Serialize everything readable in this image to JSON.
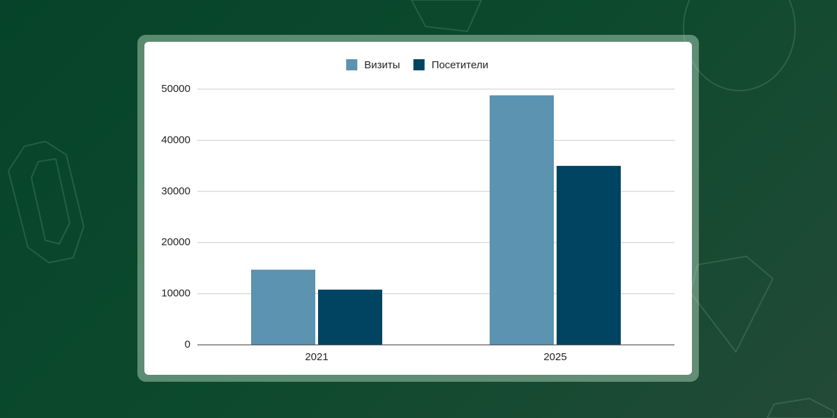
{
  "chart_data": {
    "type": "bar",
    "categories": [
      "2021",
      "2025"
    ],
    "series": [
      {
        "name": "Визиты",
        "color": "#5b93b1",
        "values": [
          14700,
          48800
        ]
      },
      {
        "name": "Посетители",
        "color": "#004461",
        "values": [
          10800,
          35000
        ]
      }
    ],
    "ylim": [
      0,
      50000
    ],
    "yticks": [
      0,
      10000,
      20000,
      30000,
      40000,
      50000
    ],
    "grid": true,
    "legend": "top"
  }
}
